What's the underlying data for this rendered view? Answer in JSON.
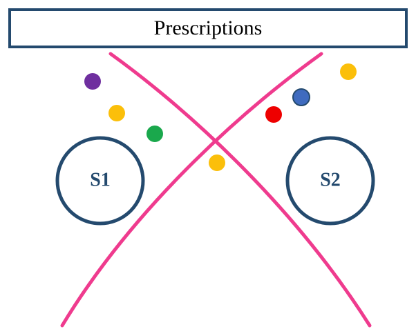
{
  "header": {
    "title": "Prescriptions"
  },
  "sets": [
    {
      "label": "S1"
    },
    {
      "label": "S2"
    }
  ],
  "colors": {
    "border": "#244a6e",
    "curve": "#ef3b8e",
    "purple": "#6f2f9f",
    "yellow": "#fbbf0a",
    "green": "#1aa84c",
    "red": "#ee0000",
    "blue": "#3f6bbf"
  },
  "dots": [
    {
      "color": "purple"
    },
    {
      "color": "yellow"
    },
    {
      "color": "green"
    },
    {
      "color": "yellow"
    },
    {
      "color": "red"
    },
    {
      "color": "blue"
    },
    {
      "color": "yellow"
    }
  ]
}
